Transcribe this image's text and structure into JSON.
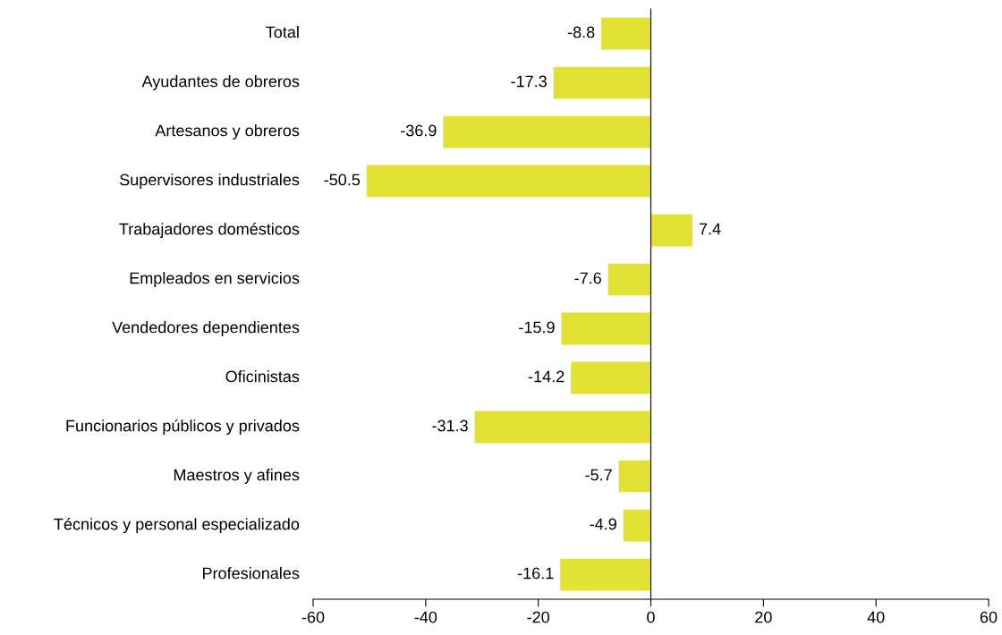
{
  "chart_data": {
    "type": "bar",
    "orientation": "horizontal",
    "categories": [
      "Total",
      "Ayudantes de obreros",
      "Artesanos y obreros",
      "Supervisores industriales",
      "Trabajadores domésticos",
      "Empleados en servicios",
      "Vendedores dependientes",
      "Oficinistas",
      "Funcionarios públicos y privados",
      "Maestros y afines",
      "Técnicos y personal especializado",
      "Profesionales"
    ],
    "values": [
      -8.8,
      -17.3,
      -36.9,
      -50.5,
      7.4,
      -7.6,
      -15.9,
      -14.2,
      -31.3,
      -5.7,
      -4.9,
      -16.1
    ],
    "color": "#e2e234",
    "xlim": [
      -60,
      60
    ],
    "xticks": [
      -60,
      -40,
      -20,
      0,
      20,
      40,
      60
    ],
    "data_labels": true,
    "legend": false
  }
}
